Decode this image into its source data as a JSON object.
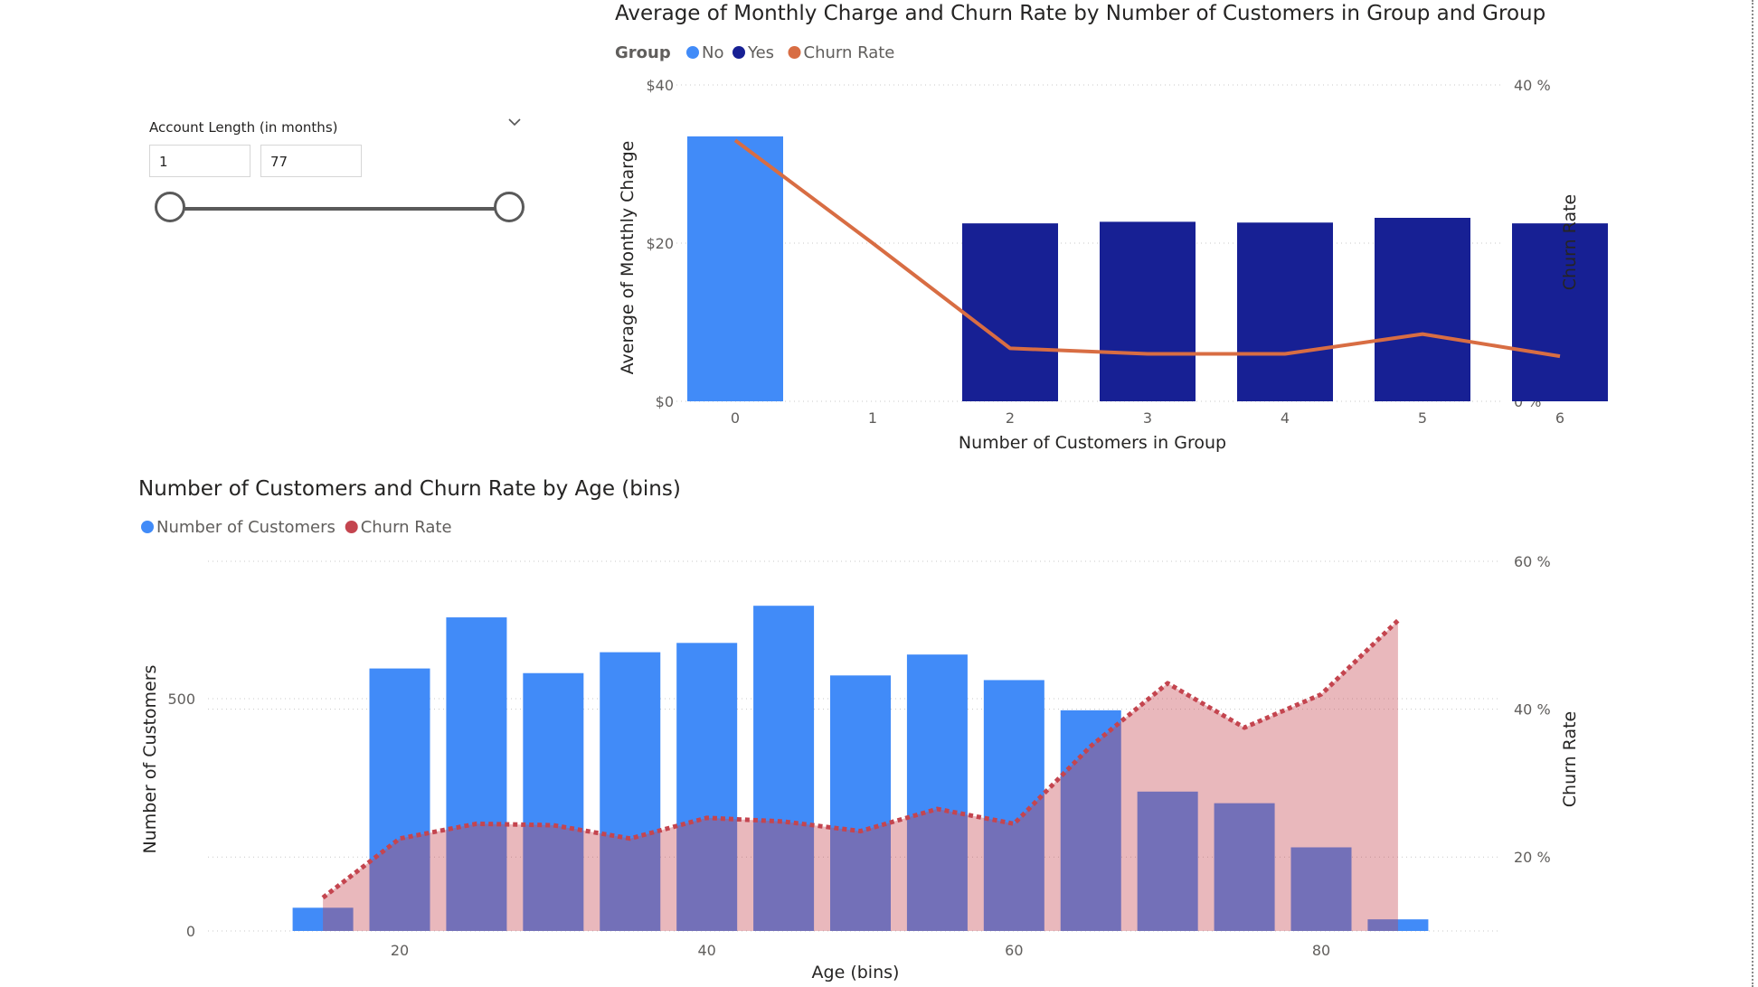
{
  "slicer": {
    "title": "Account Length (in months)",
    "min_value": "1",
    "max_value": "77",
    "range": [
      1,
      77
    ]
  },
  "chart_data": [
    {
      "type": "bar",
      "title": "Average of Monthly Charge and Churn Rate by Number of Customers in Group and Group",
      "legend_title": "Group",
      "legend_placement": "top-left",
      "xlabel": "Number of Customers in Group",
      "ylabel": "Average of Monthly Charge",
      "y2label": "Churn Rate",
      "categories": [
        "0",
        "1",
        "2",
        "3",
        "4",
        "5",
        "6"
      ],
      "ylim": [
        0,
        40
      ],
      "yticks": [
        "$0",
        "$20",
        "$40"
      ],
      "y2lim": [
        0,
        40
      ],
      "y2ticks": [
        "0 %",
        "20 %",
        "40 %"
      ],
      "grid": true,
      "series": [
        {
          "name": "No",
          "kind": "bar",
          "axis": "y",
          "color": "#418bf8",
          "values": [
            33.5,
            null,
            null,
            null,
            null,
            null,
            null
          ]
        },
        {
          "name": "Yes",
          "kind": "bar",
          "axis": "y",
          "color": "#172094",
          "values": [
            null,
            null,
            22.5,
            22.7,
            22.6,
            23.2,
            22.5
          ]
        },
        {
          "name": "Churn Rate",
          "kind": "line",
          "axis": "y2",
          "color": "#d86d43",
          "values": [
            33,
            20,
            6.7,
            6.0,
            6.0,
            8.5,
            5.7
          ]
        }
      ]
    },
    {
      "type": "bar",
      "title": "Number of Customers and Churn Rate by Age (bins)",
      "legend_placement": "top-left",
      "xlabel": "Age (bins)",
      "ylabel": "Number of Customers",
      "y2label": "Churn Rate",
      "xlim": [
        7.5,
        90
      ],
      "xticks": [
        20,
        40,
        60,
        80
      ],
      "ylim": [
        0,
        850
      ],
      "yticks": [
        0,
        500
      ],
      "y2lim": [
        10,
        60
      ],
      "y2ticks": [
        "20 %",
        "40 %",
        "60 %"
      ],
      "y2tick_values": [
        20,
        40,
        60
      ],
      "grid": true,
      "series": [
        {
          "name": "Number of Customers",
          "kind": "bar",
          "axis": "y",
          "color": "#418bf8",
          "x": [
            15,
            20,
            25,
            30,
            35,
            40,
            45,
            50,
            55,
            60,
            65,
            70,
            75,
            80,
            85
          ],
          "values": [
            50,
            565,
            675,
            555,
            600,
            620,
            700,
            550,
            595,
            540,
            475,
            300,
            275,
            180,
            25
          ]
        },
        {
          "name": "Churn Rate",
          "kind": "area",
          "axis": "y2",
          "color": "#c4454f",
          "x": [
            15,
            20,
            25,
            30,
            35,
            40,
            45,
            50,
            55,
            60,
            65,
            70,
            75,
            80,
            85
          ],
          "values": [
            14.5,
            22.5,
            24.5,
            24.3,
            22.5,
            25.3,
            24.8,
            23.5,
            26.5,
            24.5,
            35,
            43.5,
            37.5,
            42,
            52
          ]
        }
      ]
    }
  ]
}
